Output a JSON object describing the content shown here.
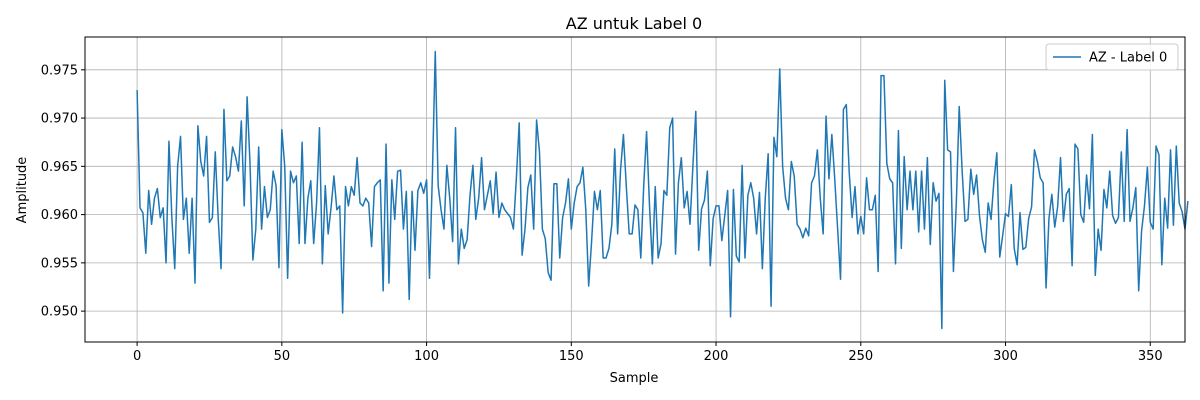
{
  "chart_data": {
    "type": "line",
    "title": "AZ untuk Label 0",
    "xlabel": "Sample",
    "ylabel": "Amplitude",
    "xlim": [
      -18,
      362
    ],
    "ylim": [
      0.9468,
      0.9784
    ],
    "xticks": [
      0,
      50,
      100,
      150,
      200,
      250,
      300,
      350
    ],
    "yticks": [
      0.95,
      0.955,
      0.96,
      0.965,
      0.97,
      0.975
    ],
    "xtick_labels": [
      "0",
      "50",
      "100",
      "150",
      "200",
      "250",
      "300",
      "350"
    ],
    "ytick_labels": [
      "0.950",
      "0.955",
      "0.960",
      "0.965",
      "0.970",
      "0.975"
    ],
    "grid": true,
    "legend_position": "top-right",
    "color": "#1f77b4",
    "series": [
      {
        "name": "AZ - Label 0",
        "x_start": 0,
        "values": [
          0.9729,
          0.9607,
          0.9602,
          0.956,
          0.9625,
          0.959,
          0.9617,
          0.9627,
          0.9597,
          0.9607,
          0.955,
          0.9676,
          0.9597,
          0.9544,
          0.965,
          0.9681,
          0.9595,
          0.9617,
          0.956,
          0.9617,
          0.9529,
          0.9692,
          0.9655,
          0.964,
          0.9681,
          0.9592,
          0.9597,
          0.9665,
          0.9597,
          0.9544,
          0.9709,
          0.9635,
          0.964,
          0.967,
          0.966,
          0.9645,
          0.9697,
          0.9609,
          0.9722,
          0.9653,
          0.9553,
          0.9585,
          0.967,
          0.9585,
          0.9629,
          0.9597,
          0.9605,
          0.9645,
          0.963,
          0.9545,
          0.9688,
          0.965,
          0.9534,
          0.9645,
          0.9633,
          0.964,
          0.957,
          0.9675,
          0.957,
          0.9617,
          0.9635,
          0.957,
          0.9612,
          0.969,
          0.9549,
          0.963,
          0.958,
          0.9607,
          0.964,
          0.9605,
          0.9609,
          0.9498,
          0.9629,
          0.9609,
          0.9629,
          0.962,
          0.9659,
          0.9612,
          0.9609,
          0.9617,
          0.9612,
          0.9567,
          0.9629,
          0.9633,
          0.9636,
          0.9521,
          0.9673,
          0.9529,
          0.9636,
          0.9595,
          0.9645,
          0.9646,
          0.9585,
          0.9624,
          0.9512,
          0.9624,
          0.9563,
          0.9625,
          0.9633,
          0.9622,
          0.9636,
          0.9534,
          0.964,
          0.9769,
          0.963,
          0.9605,
          0.9585,
          0.9651,
          0.9617,
          0.9572,
          0.969,
          0.9549,
          0.9585,
          0.9565,
          0.9574,
          0.962,
          0.9651,
          0.9595,
          0.9617,
          0.9659,
          0.9605,
          0.962,
          0.9635,
          0.9601,
          0.9644,
          0.9597,
          0.9612,
          0.9605,
          0.9601,
          0.9597,
          0.9585,
          0.9637,
          0.9695,
          0.9558,
          0.9585,
          0.9628,
          0.9641,
          0.9585,
          0.9698,
          0.9665,
          0.9585,
          0.9575,
          0.954,
          0.9532,
          0.9632,
          0.9632,
          0.9555,
          0.9597,
          0.9612,
          0.9637,
          0.9585,
          0.9612,
          0.9629,
          0.9633,
          0.9649,
          0.9605,
          0.9526,
          0.9572,
          0.9624,
          0.9605,
          0.9625,
          0.9555,
          0.9555,
          0.9565,
          0.959,
          0.9668,
          0.958,
          0.9646,
          0.9683,
          0.9629,
          0.958,
          0.958,
          0.961,
          0.9605,
          0.9555,
          0.9629,
          0.9686,
          0.961,
          0.9549,
          0.9629,
          0.9555,
          0.957,
          0.9625,
          0.962,
          0.969,
          0.97,
          0.9559,
          0.9633,
          0.9659,
          0.9607,
          0.9624,
          0.959,
          0.965,
          0.9707,
          0.9563,
          0.9606,
          0.9615,
          0.9645,
          0.9547,
          0.9596,
          0.9609,
          0.9609,
          0.9573,
          0.9599,
          0.9625,
          0.9494,
          0.9626,
          0.9557,
          0.9551,
          0.9651,
          0.9555,
          0.962,
          0.9633,
          0.9617,
          0.958,
          0.9623,
          0.9544,
          0.9617,
          0.9663,
          0.9505,
          0.968,
          0.966,
          0.9751,
          0.965,
          0.9617,
          0.9605,
          0.9655,
          0.964,
          0.959,
          0.9585,
          0.9576,
          0.9586,
          0.9578,
          0.9633,
          0.964,
          0.9667,
          0.9617,
          0.958,
          0.9702,
          0.9637,
          0.9683,
          0.9637,
          0.9585,
          0.9533,
          0.9709,
          0.9714,
          0.9644,
          0.9597,
          0.9629,
          0.958,
          0.9598,
          0.958,
          0.9638,
          0.9605,
          0.9605,
          0.962,
          0.9541,
          0.9744,
          0.9744,
          0.9653,
          0.9637,
          0.9633,
          0.9549,
          0.9687,
          0.9565,
          0.966,
          0.9605,
          0.9645,
          0.9605,
          0.9645,
          0.9582,
          0.9645,
          0.9585,
          0.9659,
          0.9569,
          0.9633,
          0.9614,
          0.9622,
          0.9482,
          0.9739,
          0.9667,
          0.9665,
          0.9541,
          0.9612,
          0.9712,
          0.9646,
          0.9593,
          0.9595,
          0.9647,
          0.9621,
          0.9641,
          0.9599,
          0.9574,
          0.9561,
          0.9612,
          0.9595,
          0.9635,
          0.9664,
          0.9556,
          0.9578,
          0.9601,
          0.9598,
          0.9631,
          0.9565,
          0.9548,
          0.9602,
          0.9564,
          0.9566,
          0.9596,
          0.9608,
          0.9667,
          0.9655,
          0.9638,
          0.9633,
          0.9524,
          0.9596,
          0.9621,
          0.9587,
          0.9608,
          0.9659,
          0.9593,
          0.9621,
          0.9627,
          0.9547,
          0.9673,
          0.9668,
          0.96,
          0.9592,
          0.9641,
          0.9606,
          0.9683,
          0.9537,
          0.9585,
          0.9563,
          0.9626,
          0.9607,
          0.9645,
          0.9599,
          0.9591,
          0.9597,
          0.9665,
          0.9593,
          0.9688,
          0.9593,
          0.9607,
          0.9628,
          0.9521,
          0.9583,
          0.9609,
          0.9649,
          0.9592,
          0.9585,
          0.9671,
          0.9662,
          0.9548,
          0.9617,
          0.9586,
          0.9667,
          0.9589,
          0.9671,
          0.9612,
          0.9603,
          0.9585,
          0.9614
        ]
      }
    ]
  }
}
